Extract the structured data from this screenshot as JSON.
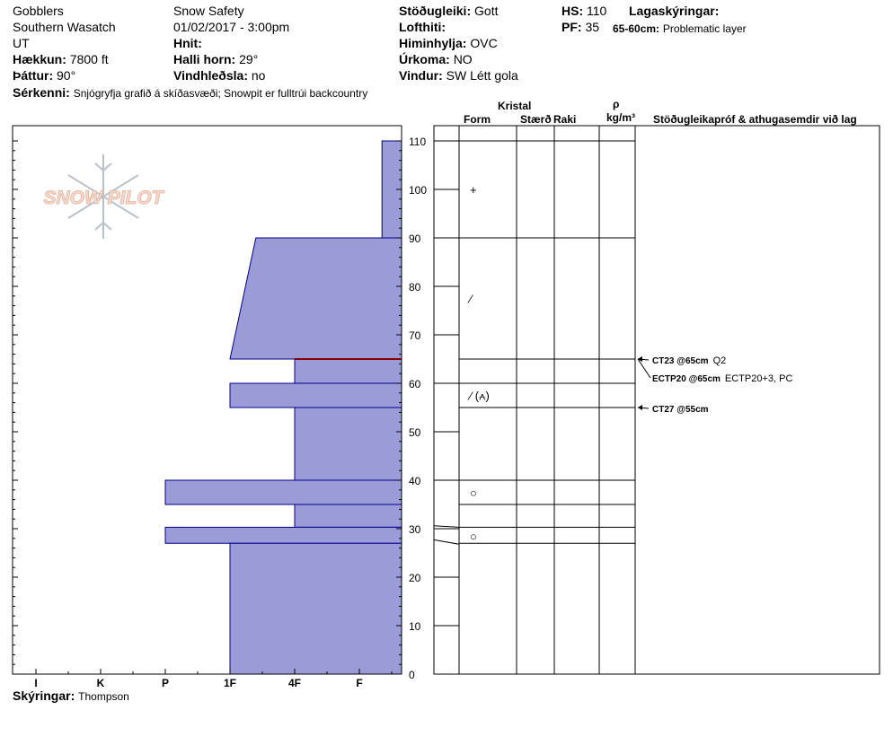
{
  "header": {
    "location": "Gobblers",
    "range": "Southern Wasatch",
    "state": "UT",
    "elevation_label": "Hækkun:",
    "elevation_value": "7800 ft",
    "aspect_label": "Þáttur:",
    "aspect_value": "90°",
    "org": "Snow Safety",
    "datetime": "01/02/2017 - 3:00pm",
    "coords_label": "Hnit:",
    "slope_label": "Halli horn:",
    "slope_value": "29°",
    "wind_load_label": "Vindhleðsla:",
    "wind_load_value": "no",
    "stability_label": "Stöðugleiki:",
    "stability_value": "Gott",
    "air_temp_label": "Lofthiti:",
    "sky_label": "Himinhylja:",
    "sky_value": "OVC",
    "precip_label": "Úrkoma:",
    "precip_value": "NO",
    "wind_label": "Vindur:",
    "wind_value": "SW Létt gola",
    "hs_label": "HS:",
    "hs_value": "110",
    "pf_label": "PF:",
    "pf_value": "35",
    "layer_notes_label": "Lagaskýringar:",
    "layer_note_depth": "65-60cm:",
    "layer_note_text": "Problematic layer",
    "features_label": "Sérkenni:",
    "features_value": "Snjógryfja grafið á skíðasvæði; Snowpit er fulltrúi backcountry",
    "notes_label": "Skýringar:",
    "notes_value": "Thompson"
  },
  "logo_text": "SNOW PILOT",
  "table_headers": {
    "crystal": "Kristal",
    "form": "Form",
    "size": "Stærð",
    "moisture": "Raki",
    "rho": "ρ",
    "density_unit": "kg/m³",
    "tests": "Stöðugleikapróf & athugasemdir við lag"
  },
  "colors": {
    "hardness_fill": "#9b9bd7",
    "hardness_stroke": "#00008b",
    "problem_layer": "#8b0000"
  },
  "chart_data": {
    "type": "bar",
    "title": "",
    "ylabel": "",
    "xlabel": "",
    "ylim": [
      0,
      110
    ],
    "y_ticks": [
      0,
      10,
      20,
      30,
      40,
      50,
      60,
      70,
      80,
      90,
      100,
      110
    ],
    "hardness_ticks": [
      "I",
      "K",
      "P",
      "1F",
      "4F",
      "F"
    ],
    "hardness_scale": {
      "I": 6,
      "K": 5,
      "P": 4,
      "1F": 3,
      "4F": 2,
      "F": 1
    },
    "hardness_profile": [
      {
        "top": 110,
        "bottom": 90,
        "hard_top": 0.65,
        "hard_bottom": 0.65
      },
      {
        "top": 90,
        "bottom": 65,
        "hard_top": 2.6,
        "hard_bottom": 3.0
      },
      {
        "top": 65,
        "bottom": 60,
        "hard_top": 2.0,
        "hard_bottom": 2.0
      },
      {
        "top": 60,
        "bottom": 55,
        "hard_top": 3.0,
        "hard_bottom": 3.0
      },
      {
        "top": 55,
        "bottom": 40,
        "hard_top": 2.0,
        "hard_bottom": 2.0
      },
      {
        "top": 40,
        "bottom": 35,
        "hard_top": 4.0,
        "hard_bottom": 4.0
      },
      {
        "top": 35,
        "bottom": 30.3,
        "hard_top": 2.0,
        "hard_bottom": 2.0
      },
      {
        "top": 30.3,
        "bottom": 27,
        "hard_top": 4.0,
        "hard_bottom": 4.0
      },
      {
        "top": 27,
        "bottom": 0,
        "hard_top": 3.0,
        "hard_bottom": 3.0
      }
    ],
    "problem_layer_depth": 65,
    "layer_boundaries": [
      110,
      90,
      65,
      60,
      55,
      40,
      35,
      30.3,
      27,
      0
    ],
    "grain_symbols": [
      {
        "depth": 100,
        "symbol": "+"
      },
      {
        "depth": 77.5,
        "symbol": "⁄"
      },
      {
        "depth": 57.5,
        "symbol": "⁄ (⩜)"
      },
      {
        "depth": 37.5,
        "symbol": "○"
      },
      {
        "depth": 28.5,
        "symbol": "○"
      }
    ],
    "tests": [
      {
        "depth": 65,
        "code": "CT23 @65cm",
        "note": "Q2"
      },
      {
        "depth": 65,
        "code": "ECTP20 @65cm",
        "note": "ECTP20+3, PC"
      },
      {
        "depth": 55,
        "code": "CT27 @55cm",
        "note": ""
      }
    ]
  }
}
